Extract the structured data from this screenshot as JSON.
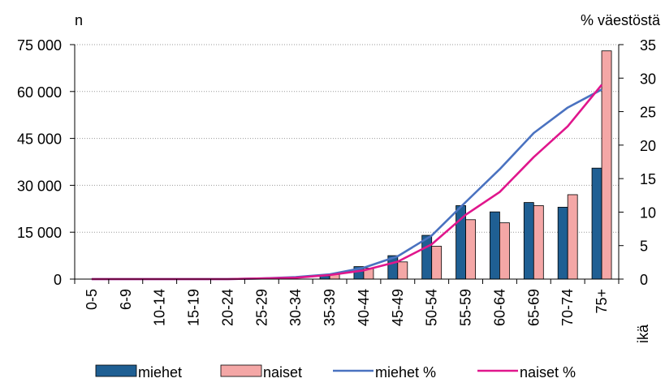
{
  "chart_data": {
    "type": "bar",
    "categories": [
      "0-5",
      "6-9",
      "10-14",
      "15-19",
      "20-24",
      "25-29",
      "30-34",
      "35-39",
      "40-44",
      "45-49",
      "50-54",
      "55-59",
      "60-64",
      "65-69",
      "70-74",
      "75+"
    ],
    "ylabel_left": "n",
    "ylabel_right": "% väestöstä",
    "xlabel": "ikä",
    "y_left_ticks": [
      "0",
      "15 000",
      "30 000",
      "45 000",
      "60 000",
      "75 000"
    ],
    "y_right_ticks": [
      "0",
      "5",
      "10",
      "15",
      "20",
      "25",
      "30",
      "35"
    ],
    "ylim_left": [
      0,
      75000
    ],
    "ylim_right": [
      0,
      35
    ],
    "grid": "horizontal dotted",
    "legend_position": "bottom",
    "series": [
      {
        "name": "miehet",
        "kind": "bar",
        "axis": "left",
        "color": "#1f5f93",
        "values": [
          0,
          0,
          0,
          0,
          0,
          0,
          0,
          1000,
          4000,
          7500,
          14000,
          23500,
          21500,
          24500,
          23000,
          35500
        ]
      },
      {
        "name": "naiset",
        "kind": "bar",
        "axis": "left",
        "color": "#f4a7a6",
        "values": [
          0,
          0,
          0,
          0,
          0,
          0,
          0,
          1500,
          3500,
          5500,
          10500,
          19000,
          18000,
          23500,
          27000,
          73000
        ]
      },
      {
        "name": "miehet %",
        "kind": "line",
        "axis": "right",
        "color": "#4a72c0",
        "values": [
          0,
          0,
          0,
          0,
          0,
          0.1,
          0.3,
          0.7,
          1.7,
          3.4,
          6.5,
          11.5,
          16.4,
          21.8,
          25.6,
          28.3
        ]
      },
      {
        "name": "naiset %",
        "kind": "line",
        "axis": "right",
        "color": "#e0168c",
        "values": [
          0,
          0,
          0,
          0,
          0,
          0.1,
          0.2,
          0.6,
          1.3,
          2.6,
          5.2,
          9.6,
          13.0,
          18.2,
          22.8,
          29.0
        ]
      }
    ]
  }
}
